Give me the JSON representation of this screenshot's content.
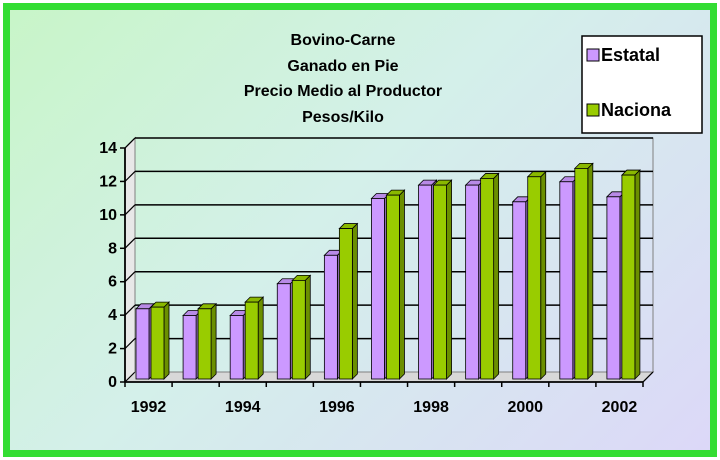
{
  "chart_data": {
    "type": "bar",
    "title": [
      "Bovino-Carne",
      "Ganado en Pie",
      "Precio Medio al Productor",
      "Pesos/Kilo"
    ],
    "categories": [
      "1992",
      "1993",
      "1994",
      "1995",
      "1996",
      "1997",
      "1998",
      "1999",
      "2000",
      "2001",
      "2002"
    ],
    "x_tick_labels": [
      "1992",
      "1994",
      "1996",
      "1998",
      "2000",
      "2002"
    ],
    "y_ticks": [
      "0",
      "2",
      "4",
      "6",
      "8",
      "10",
      "12",
      "14"
    ],
    "ylim": [
      0,
      14
    ],
    "grid": true,
    "legend_position": "top-right",
    "series": [
      {
        "name": "Estatal",
        "color": "#cc99ff",
        "values": [
          4.2,
          3.8,
          3.8,
          5.7,
          7.4,
          10.8,
          11.6,
          11.6,
          10.6,
          11.8,
          10.9
        ]
      },
      {
        "name": "Naciona",
        "color": "#99cc00",
        "values": [
          4.3,
          4.2,
          4.6,
          5.9,
          9.0,
          11.0,
          11.6,
          12.0,
          12.1,
          12.6,
          12.2
        ]
      }
    ]
  }
}
